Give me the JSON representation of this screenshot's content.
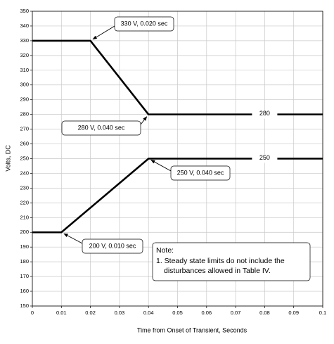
{
  "chart_data": {
    "type": "line",
    "x_label": "Time from Onset of Transient, Seconds",
    "y_label": "Volts, DC",
    "xlim": [
      0,
      0.1
    ],
    "xticks": [
      0,
      0.01,
      0.02,
      0.03,
      0.04,
      0.05,
      0.06,
      0.07,
      0.08,
      0.09,
      0.1
    ],
    "ylim": [
      150,
      350
    ],
    "yticks": [
      150,
      160,
      170,
      180,
      190,
      200,
      210,
      220,
      230,
      240,
      250,
      260,
      270,
      280,
      290,
      300,
      310,
      320,
      330,
      340,
      350
    ],
    "grid": true,
    "series": [
      {
        "color": "#000000",
        "x": [
          0,
          0.02,
          0.04,
          0.1
        ],
        "values": [
          330,
          330,
          280,
          280
        ]
      },
      {
        "color": "#000000",
        "x": [
          0,
          0.01,
          0.04,
          0.1
        ],
        "values": [
          200,
          200,
          250,
          250
        ]
      }
    ],
    "line_labels": [
      {
        "text": "280",
        "x": 0.08,
        "y": 280
      },
      {
        "text": "250",
        "x": 0.08,
        "y": 250
      }
    ],
    "callouts": [
      {
        "text": "330 V, 0.020 sec",
        "x": 0.02,
        "y": 330
      },
      {
        "text": "280 V, 0.040 sec",
        "x": 0.04,
        "y": 280
      },
      {
        "text": "250 V, 0.040 sec",
        "x": 0.04,
        "y": 250
      },
      {
        "text": "200 V, 0.010 sec",
        "x": 0.01,
        "y": 200
      }
    ],
    "note": {
      "title": "Note:",
      "lines": [
        "1. Steady state limits do not include the",
        "disturbances allowed in Table IV."
      ]
    }
  }
}
